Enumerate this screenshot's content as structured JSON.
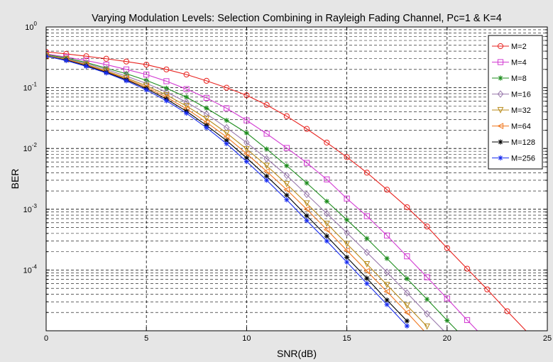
{
  "chart_data": {
    "type": "line",
    "title": "Varying Modulation Levels: Selection Combining in Rayleigh Fading Channel, Pc=1 & K=4",
    "xlabel": "SNR(dB)",
    "ylabel": "BER",
    "xlim": [
      0,
      25
    ],
    "ylim": [
      1e-05,
      1
    ],
    "yscale": "log",
    "grid": true,
    "legend_position": "top-right",
    "x_ticks": [
      "0",
      "5",
      "10",
      "15",
      "20",
      "25"
    ],
    "y_ticks": [
      {
        "base": "10",
        "exp": "0",
        "value": 1
      },
      {
        "base": "10",
        "exp": "-1",
        "value": 0.1
      },
      {
        "base": "10",
        "exp": "-2",
        "value": 0.01
      },
      {
        "base": "10",
        "exp": "-3",
        "value": 0.001
      },
      {
        "base": "10",
        "exp": "-4",
        "value": 0.0001
      }
    ],
    "series": [
      {
        "name": "M=2",
        "color": "#e8231f",
        "marker": "circle",
        "x": [
          0,
          1,
          2,
          3,
          4,
          5,
          6,
          7,
          8,
          9,
          10,
          11,
          12,
          13,
          14,
          15,
          16,
          17,
          18,
          19,
          20,
          21,
          22,
          23,
          24
        ],
        "y": [
          0.39,
          0.36,
          0.33,
          0.3,
          0.27,
          0.24,
          0.2,
          0.165,
          0.13,
          0.1,
          0.075,
          0.052,
          0.034,
          0.021,
          0.0125,
          0.0072,
          0.004,
          0.0021,
          0.00108,
          0.00052,
          0.00023,
          0.000105,
          4.8e-05,
          2.1e-05,
          9.5e-06
        ]
      },
      {
        "name": "M=4",
        "color": "#d23ad2",
        "marker": "square",
        "x": [
          0,
          1,
          2,
          3,
          4,
          5,
          6,
          7,
          8,
          9,
          10,
          11,
          12,
          13,
          14,
          15,
          16,
          17,
          18,
          19,
          20,
          21,
          22
        ],
        "y": [
          0.36,
          0.32,
          0.28,
          0.24,
          0.2,
          0.165,
          0.128,
          0.095,
          0.068,
          0.046,
          0.029,
          0.0175,
          0.0102,
          0.0058,
          0.0031,
          0.0015,
          0.00077,
          0.00037,
          0.000168,
          7.6e-05,
          3.4e-05,
          1.5e-05,
          6.8e-06
        ]
      },
      {
        "name": "M=8",
        "color": "#1c8c1c",
        "marker": "star",
        "x": [
          0,
          1,
          2,
          3,
          4,
          5,
          6,
          7,
          8,
          9,
          10,
          11,
          12,
          13,
          14,
          15,
          16,
          17,
          18,
          19,
          20,
          21
        ],
        "y": [
          0.35,
          0.31,
          0.26,
          0.21,
          0.17,
          0.132,
          0.098,
          0.07,
          0.046,
          0.029,
          0.018,
          0.0098,
          0.0052,
          0.0027,
          0.00135,
          0.00067,
          0.00033,
          0.000155,
          7.2e-05,
          3.3e-05,
          1.48e-05,
          6.8e-06
        ]
      },
      {
        "name": "M=16",
        "color": "#9a7aac",
        "marker": "diamond",
        "x": [
          0,
          1,
          2,
          3,
          4,
          5,
          6,
          7,
          8,
          9,
          10,
          11,
          12,
          13,
          14,
          15,
          16,
          17,
          18,
          19,
          20
        ],
        "y": [
          0.34,
          0.3,
          0.25,
          0.2,
          0.155,
          0.118,
          0.085,
          0.058,
          0.037,
          0.022,
          0.0125,
          0.0068,
          0.0036,
          0.00175,
          0.00085,
          0.00041,
          0.000195,
          9.2e-05,
          4.2e-05,
          1.9e-05,
          8.8e-06
        ]
      },
      {
        "name": "M=32",
        "color": "#b88a1a",
        "marker": "triangle-down",
        "x": [
          0,
          1,
          2,
          3,
          4,
          5,
          6,
          7,
          8,
          9,
          10,
          11,
          12,
          13,
          14,
          15,
          16,
          17,
          18,
          19
        ],
        "y": [
          0.34,
          0.295,
          0.24,
          0.19,
          0.145,
          0.108,
          0.076,
          0.05,
          0.031,
          0.018,
          0.0098,
          0.0052,
          0.0026,
          0.00125,
          0.00058,
          0.00027,
          0.000125,
          5.7e-05,
          2.6e-05,
          1.18e-05
        ]
      },
      {
        "name": "M=64",
        "color": "#f07820",
        "marker": "triangle-left",
        "x": [
          0,
          1,
          2,
          3,
          4,
          5,
          6,
          7,
          8,
          9,
          10,
          11,
          12,
          13,
          14,
          15,
          16,
          17,
          18,
          19
        ],
        "y": [
          0.33,
          0.29,
          0.235,
          0.185,
          0.14,
          0.102,
          0.07,
          0.045,
          0.027,
          0.0155,
          0.0082,
          0.0042,
          0.0021,
          0.001,
          0.00046,
          0.00021,
          9.6e-05,
          4.4e-05,
          2e-05,
          8.8e-06
        ]
      },
      {
        "name": "M=128",
        "color": "#000000",
        "marker": "star",
        "x": [
          0,
          1,
          2,
          3,
          4,
          5,
          6,
          7,
          8,
          9,
          10,
          11,
          12,
          13,
          14,
          15,
          16,
          17,
          18
        ],
        "y": [
          0.33,
          0.285,
          0.23,
          0.18,
          0.135,
          0.097,
          0.065,
          0.041,
          0.024,
          0.0135,
          0.007,
          0.0035,
          0.0017,
          0.00078,
          0.00036,
          0.000162,
          7.3e-05,
          3.2e-05,
          1.45e-05
        ]
      },
      {
        "name": "M=256",
        "color": "#1a2ef0",
        "marker": "star",
        "x": [
          0,
          1,
          2,
          3,
          4,
          5,
          6,
          7,
          8,
          9,
          10,
          11,
          12,
          13,
          14,
          15,
          16,
          17,
          18
        ],
        "y": [
          0.33,
          0.28,
          0.225,
          0.175,
          0.13,
          0.092,
          0.061,
          0.038,
          0.022,
          0.012,
          0.0061,
          0.003,
          0.00143,
          0.00065,
          0.0003,
          0.000135,
          6e-05,
          2.7e-05,
          1.2e-05
        ]
      }
    ]
  }
}
